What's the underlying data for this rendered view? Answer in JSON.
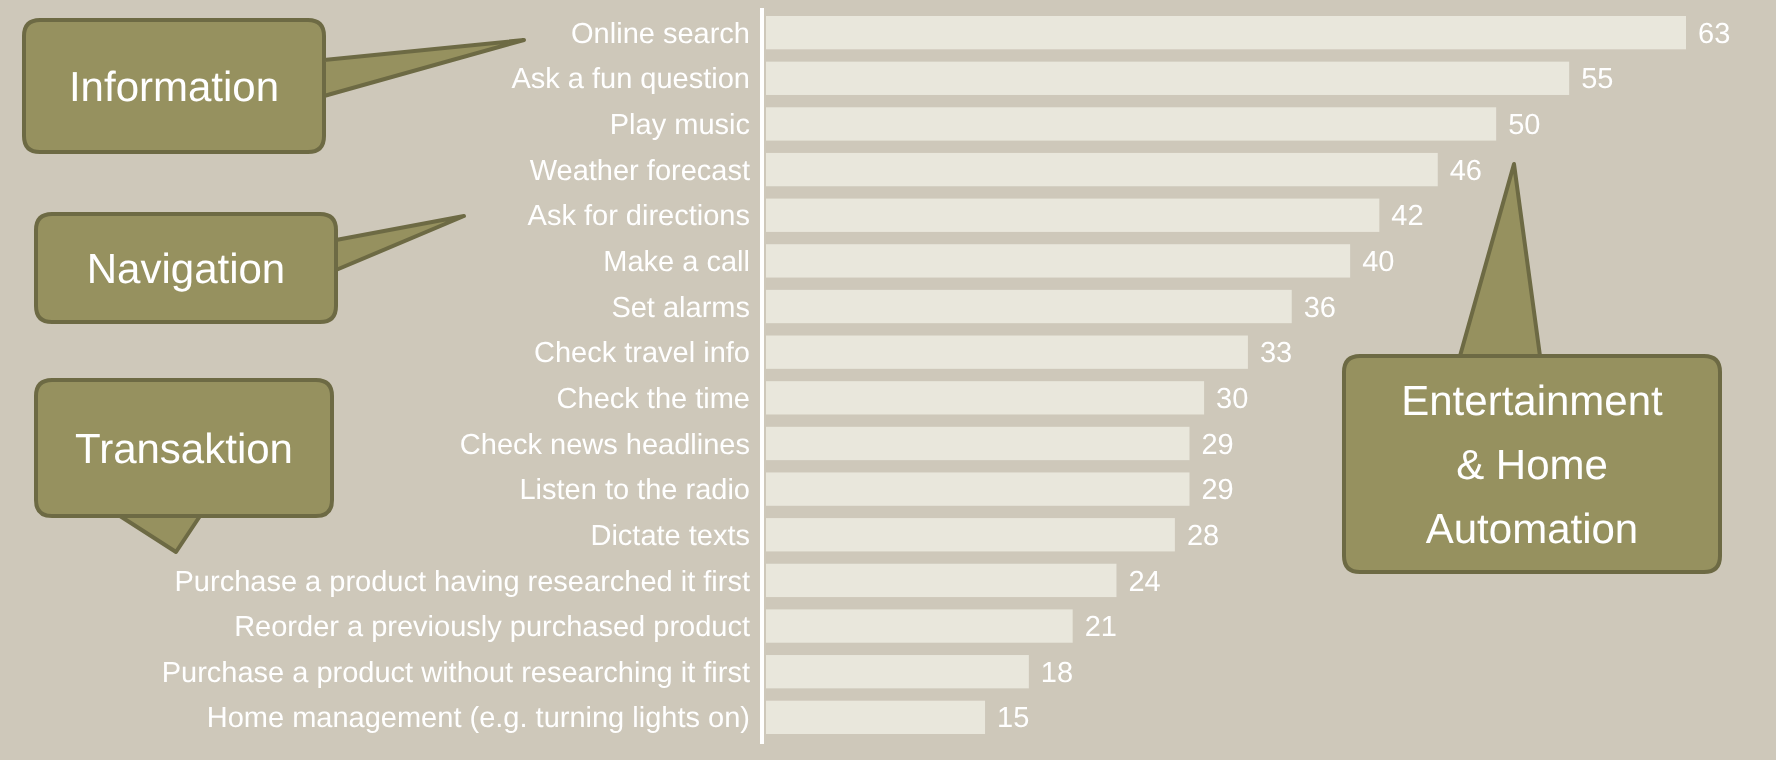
{
  "chart_data": {
    "type": "bar",
    "orientation": "horizontal",
    "categories": [
      "Online search",
      "Ask a fun question",
      "Play music",
      "Weather forecast",
      "Ask for directions",
      "Make a call",
      "Set alarms",
      "Check travel info",
      "Check the time",
      "Check news headlines",
      "Listen to the radio",
      "Dictate texts",
      "Purchase a product having researched it first",
      "Reorder a previously purchased product",
      "Purchase a product without researching it first",
      "Home management (e.g. turning lights on)"
    ],
    "values": [
      63,
      55,
      50,
      46,
      42,
      40,
      36,
      33,
      30,
      29,
      29,
      28,
      24,
      21,
      18,
      15
    ],
    "color": "#e9e7dc",
    "data_labels": true,
    "annotations": [
      "Information",
      "Navigation",
      "Transaktion",
      "Entertainment\n& Home\nAutomation"
    ]
  }
}
